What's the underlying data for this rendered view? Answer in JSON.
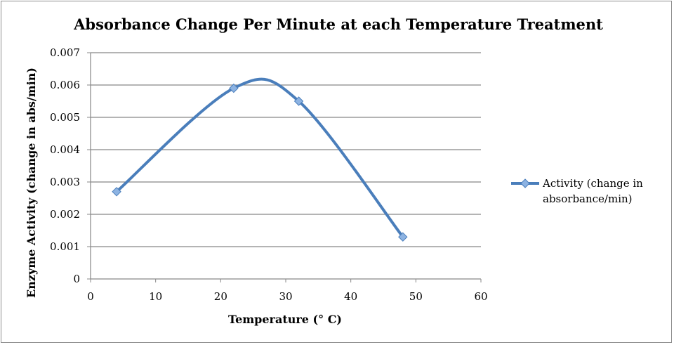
{
  "chart_data": {
    "type": "line",
    "title": "Absorbance Change Per Minute at each Temperature Treatment",
    "xlabel": "Temperature (° C)",
    "ylabel": "Enzyme Activity (change in abs/min)",
    "xlim": [
      0,
      60
    ],
    "ylim": [
      0,
      0.007
    ],
    "x_ticks": [
      "0",
      "10",
      "20",
      "30",
      "40",
      "50",
      "60"
    ],
    "y_ticks": [
      "0",
      "0.001",
      "0.002",
      "0.003",
      "0.004",
      "0.005",
      "0.006",
      "0.007"
    ],
    "grid": "horizontal",
    "legend_position": "right",
    "series": [
      {
        "name_lines": [
          "Activity (change in",
          "absorbance/min)"
        ],
        "color": "#4a7ebb",
        "marker_fill": "#8db3e2",
        "marker": "diamond",
        "smooth": true,
        "x": [
          4,
          22,
          32,
          48
        ],
        "y": [
          0.0027,
          0.0059,
          0.0055,
          0.0013
        ]
      }
    ]
  }
}
